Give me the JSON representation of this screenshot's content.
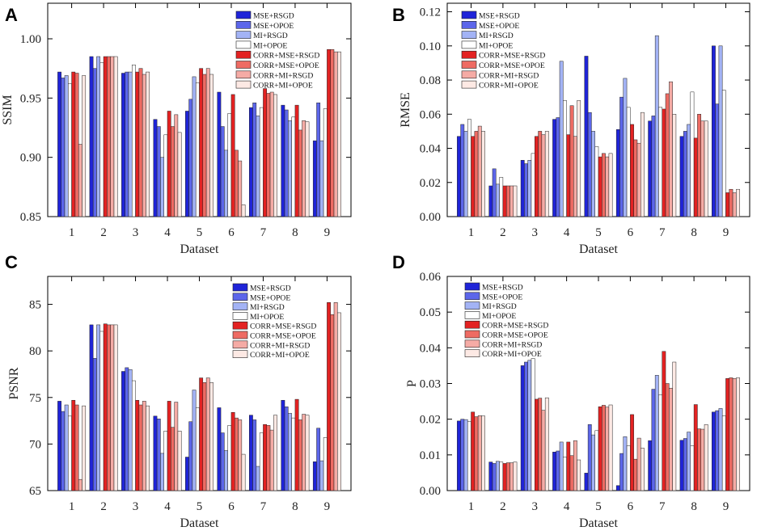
{
  "series_colors": {
    "MSE+RSGD": "#1f24d8",
    "MSE+OPOE": "#5c66ea",
    "MI+RSGD": "#a3b3f5",
    "MI+OPOE": "#ffffff",
    "CORR+MSE+RSGD": "#e32222",
    "CORR+MSE+OPOE": "#ee6b63",
    "CORR+MI+RSGD": "#f5aba5",
    "CORR+MI+OPOE": "#fde9e4"
  },
  "chart_data": [
    {
      "panel": "A",
      "type": "bar",
      "title": "",
      "xlabel": "Dataset",
      "ylabel": "SSIM",
      "ylim": [
        0.85,
        1.03
      ],
      "yticks": [
        0.85,
        0.9,
        0.95,
        1.0
      ],
      "tick_decimals": 2,
      "categories": [
        "1",
        "2",
        "3",
        "4",
        "5",
        "6",
        "7",
        "8",
        "9"
      ],
      "series": [
        {
          "name": "MSE+RSGD",
          "values": [
            0.972,
            0.985,
            0.971,
            0.932,
            0.939,
            0.955,
            0.942,
            0.944,
            0.914
          ]
        },
        {
          "name": "MSE+OPOE",
          "values": [
            0.967,
            0.975,
            0.972,
            0.926,
            0.949,
            0.926,
            0.946,
            0.94,
            0.946
          ]
        },
        {
          "name": "MI+RSGD",
          "values": [
            0.969,
            0.985,
            0.972,
            0.9,
            0.968,
            0.906,
            0.935,
            0.931,
            0.914
          ]
        },
        {
          "name": "MI+OPOE",
          "values": [
            0.962,
            0.98,
            0.978,
            0.919,
            0.963,
            0.937,
            0.942,
            0.934,
            0.941
          ]
        },
        {
          "name": "CORR+MSE+RSGD",
          "values": [
            0.972,
            0.985,
            0.972,
            0.939,
            0.975,
            0.953,
            0.958,
            0.944,
            0.991
          ]
        },
        {
          "name": "CORR+MSE+OPOE",
          "values": [
            0.971,
            0.985,
            0.975,
            0.926,
            0.97,
            0.906,
            0.954,
            0.923,
            0.991
          ]
        },
        {
          "name": "CORR+MI+RSGD",
          "values": [
            0.911,
            0.985,
            0.97,
            0.936,
            0.975,
            0.897,
            0.955,
            0.931,
            0.989
          ]
        },
        {
          "name": "CORR+MI+OPOE",
          "values": [
            0.969,
            0.985,
            0.972,
            0.921,
            0.97,
            0.86,
            0.953,
            0.93,
            0.989
          ]
        }
      ]
    },
    {
      "panel": "B",
      "type": "bar",
      "title": "",
      "xlabel": "Dataset",
      "ylabel": "RMSE",
      "ylim": [
        0.0,
        0.125
      ],
      "yticks": [
        0.0,
        0.02,
        0.04,
        0.06,
        0.08,
        0.1,
        0.12
      ],
      "tick_decimals": 2,
      "categories": [
        "1",
        "2",
        "3",
        "4",
        "5",
        "6",
        "7",
        "8",
        "9"
      ],
      "series": [
        {
          "name": "MSE+RSGD",
          "values": [
            0.047,
            0.018,
            0.033,
            0.057,
            0.094,
            0.051,
            0.056,
            0.047,
            0.1
          ]
        },
        {
          "name": "MSE+OPOE",
          "values": [
            0.054,
            0.028,
            0.031,
            0.058,
            0.061,
            0.07,
            0.059,
            0.05,
            0.066
          ]
        },
        {
          "name": "MI+RSGD",
          "values": [
            0.05,
            0.019,
            0.033,
            0.091,
            0.05,
            0.081,
            0.106,
            0.054,
            0.1
          ]
        },
        {
          "name": "MI+OPOE",
          "values": [
            0.057,
            0.023,
            0.037,
            0.068,
            0.041,
            0.064,
            0.064,
            0.073,
            0.074
          ]
        },
        {
          "name": "CORR+MSE+RSGD",
          "values": [
            0.047,
            0.018,
            0.047,
            0.048,
            0.035,
            0.054,
            0.063,
            0.046,
            0.014
          ]
        },
        {
          "name": "CORR+MSE+OPOE",
          "values": [
            0.05,
            0.018,
            0.05,
            0.065,
            0.037,
            0.045,
            0.072,
            0.06,
            0.016
          ]
        },
        {
          "name": "CORR+MI+RSGD",
          "values": [
            0.053,
            0.018,
            0.048,
            0.047,
            0.035,
            0.043,
            0.079,
            0.056,
            0.014
          ]
        },
        {
          "name": "CORR+MI+OPOE",
          "values": [
            0.05,
            0.018,
            0.05,
            0.068,
            0.037,
            0.061,
            0.06,
            0.056,
            0.016
          ]
        }
      ]
    },
    {
      "panel": "C",
      "type": "bar",
      "title": "",
      "xlabel": "Dataset",
      "ylabel": "PSNR",
      "ylim": [
        65,
        88
      ],
      "yticks": [
        65,
        70,
        75,
        80,
        85
      ],
      "tick_decimals": 0,
      "categories": [
        "1",
        "2",
        "3",
        "4",
        "5",
        "6",
        "7",
        "8",
        "9"
      ],
      "series": [
        {
          "name": "MSE+RSGD",
          "values": [
            74.6,
            82.8,
            77.8,
            73.0,
            68.6,
            73.9,
            73.1,
            74.7,
            68.1
          ]
        },
        {
          "name": "MSE+OPOE",
          "values": [
            73.5,
            79.2,
            78.2,
            72.7,
            72.4,
            71.2,
            72.6,
            74.0,
            71.7
          ]
        },
        {
          "name": "MI+RSGD",
          "values": [
            74.2,
            82.8,
            78.0,
            69.0,
            75.8,
            69.3,
            67.6,
            73.3,
            68.2
          ]
        },
        {
          "name": "MI+OPOE",
          "values": [
            73.0,
            82.1,
            76.8,
            71.4,
            73.9,
            72.0,
            71.2,
            72.8,
            70.7
          ]
        },
        {
          "name": "CORR+MSE+RSGD",
          "values": [
            74.7,
            82.9,
            74.7,
            74.6,
            77.1,
            73.4,
            72.1,
            74.8,
            85.2
          ]
        },
        {
          "name": "CORR+MSE+OPOE",
          "values": [
            74.2,
            82.8,
            74.2,
            71.8,
            76.6,
            72.8,
            72.0,
            72.6,
            83.9
          ]
        },
        {
          "name": "CORR+MI+RSGD",
          "values": [
            66.2,
            82.8,
            74.6,
            74.5,
            77.1,
            72.6,
            71.5,
            73.2,
            85.2
          ]
        },
        {
          "name": "CORR+MI+OPOE",
          "values": [
            74.1,
            82.8,
            74.1,
            71.4,
            76.6,
            68.9,
            73.1,
            73.1,
            84.1
          ]
        }
      ]
    },
    {
      "panel": "D",
      "type": "bar",
      "title": "",
      "xlabel": "Dataset",
      "ylabel": "P",
      "ylim": [
        0.0,
        0.06
      ],
      "yticks": [
        0.0,
        0.01,
        0.02,
        0.03,
        0.04,
        0.05,
        0.06
      ],
      "tick_decimals": 2,
      "categories": [
        "1",
        "2",
        "3",
        "4",
        "5",
        "6",
        "7",
        "8",
        "9"
      ],
      "series": [
        {
          "name": "MSE+RSGD",
          "values": [
            0.0195,
            0.008,
            0.035,
            0.0108,
            0.0049,
            0.0014,
            0.014,
            0.0141,
            0.022
          ]
        },
        {
          "name": "MSE+OPOE",
          "values": [
            0.02,
            0.0076,
            0.036,
            0.0111,
            0.0185,
            0.0104,
            0.0284,
            0.0146,
            0.0224
          ]
        },
        {
          "name": "MI+RSGD",
          "values": [
            0.0199,
            0.0082,
            0.0365,
            0.0136,
            0.0156,
            0.0151,
            0.0323,
            0.0164,
            0.023
          ]
        },
        {
          "name": "MI+OPOE",
          "values": [
            0.0193,
            0.008,
            0.037,
            0.0094,
            0.0168,
            0.0126,
            0.0268,
            0.0126,
            0.0209
          ]
        },
        {
          "name": "CORR+MSE+RSGD",
          "values": [
            0.022,
            0.0076,
            0.0256,
            0.0136,
            0.0235,
            0.0213,
            0.039,
            0.0241,
            0.0314
          ]
        },
        {
          "name": "CORR+MSE+OPOE",
          "values": [
            0.0207,
            0.0078,
            0.0259,
            0.0098,
            0.0239,
            0.0088,
            0.03,
            0.0173,
            0.0316
          ]
        },
        {
          "name": "CORR+MI+RSGD",
          "values": [
            0.021,
            0.0078,
            0.0225,
            0.014,
            0.0234,
            0.0147,
            0.0287,
            0.0172,
            0.0314
          ]
        },
        {
          "name": "CORR+MI+OPOE",
          "values": [
            0.0209,
            0.008,
            0.026,
            0.0086,
            0.024,
            0.0119,
            0.036,
            0.0185,
            0.0316
          ]
        }
      ]
    }
  ]
}
